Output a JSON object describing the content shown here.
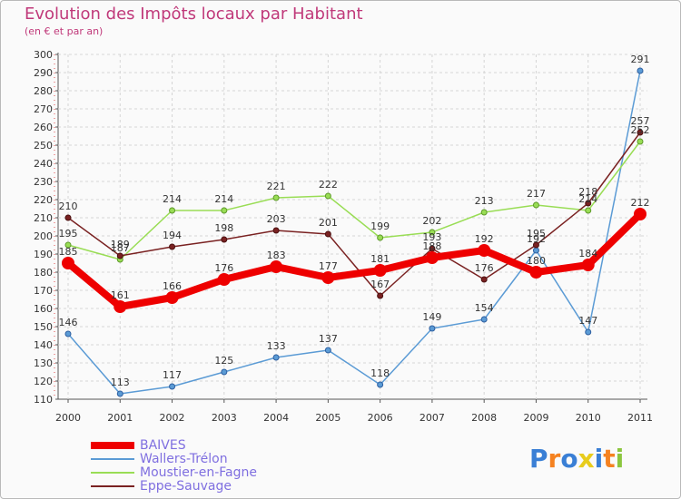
{
  "chart_data": {
    "type": "line",
    "title": "Evolution des Impôts locaux par Habitant",
    "subtitle": "(en € et par an)",
    "xlabel": "",
    "ylabel": "",
    "x": [
      "2000",
      "2001",
      "2002",
      "2003",
      "2004",
      "2005",
      "2006",
      "2007",
      "2008",
      "2009",
      "2010",
      "2011"
    ],
    "ylim": [
      110,
      300
    ],
    "yticks": [
      110,
      120,
      130,
      140,
      150,
      160,
      170,
      180,
      190,
      200,
      210,
      220,
      230,
      240,
      250,
      260,
      270,
      280,
      290,
      300
    ],
    "grid": true,
    "legend_position": "bottom-left",
    "series": [
      {
        "name": "BAIVES",
        "color": "#ee0000",
        "values": [
          185,
          161,
          166,
          176,
          183,
          177,
          181,
          188,
          192,
          180,
          184,
          212
        ]
      },
      {
        "name": "Wallers-Trélon",
        "color": "#5b9bd5",
        "values": [
          146,
          113,
          117,
          125,
          133,
          137,
          118,
          149,
          154,
          192,
          147,
          291
        ]
      },
      {
        "name": "Moustier-en-Fagne",
        "color": "#99dd55",
        "values": [
          195,
          187,
          214,
          214,
          221,
          222,
          199,
          202,
          213,
          217,
          214,
          252
        ]
      },
      {
        "name": "Eppe-Sauvage",
        "color": "#7a2222",
        "values": [
          210,
          189,
          194,
          198,
          203,
          201,
          167,
          193,
          176,
          195,
          218,
          257
        ]
      }
    ]
  },
  "logo": {
    "text": "Proxiti",
    "letters": [
      "P",
      "r",
      "o",
      "x",
      "i",
      "t",
      "i"
    ],
    "colors": [
      "#3a7fd5",
      "#f58220",
      "#3a7fd5",
      "#e8cc1c",
      "#3a7fd5",
      "#f58220",
      "#8cc63f"
    ]
  }
}
